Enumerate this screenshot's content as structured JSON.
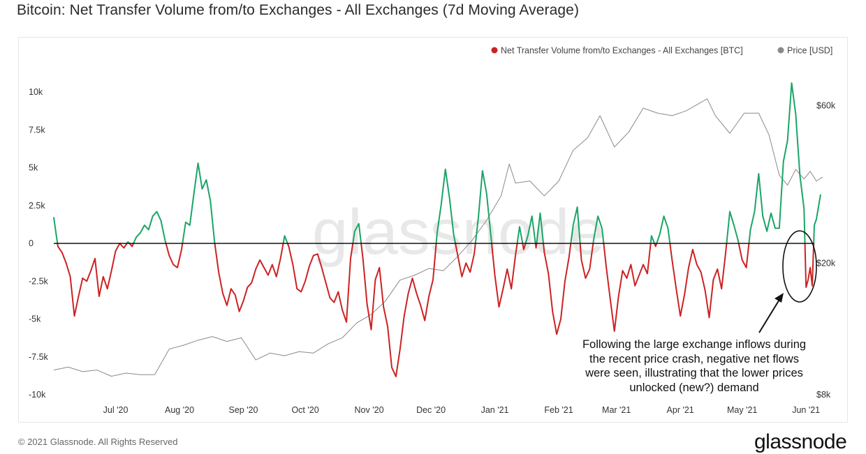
{
  "title": "Bitcoin: Net Transfer Volume from/to Exchanges - All Exchanges (7d Moving Average)",
  "footer": "© 2021 Glassnode. All Rights Reserved",
  "brand": "glassnode",
  "watermark": "glassnode",
  "annotation": "Following the large exchange inflows during the recent price crash, negative net flows were seen, illustrating that the lower prices unlocked (new?) demand",
  "colors": {
    "positive": "#1aa567",
    "negative": "#cc2222",
    "price": "#8a8a8a",
    "zero_line": "#111111"
  },
  "chart_data": {
    "type": "line",
    "legend_position": "top-right",
    "grid": false,
    "x": {
      "start": "2020-06-01",
      "end": "2021-06-05",
      "tick_labels": [
        "Jul '20",
        "Aug '20",
        "Sep '20",
        "Oct '20",
        "Nov '20",
        "Dec '20",
        "Jan '21",
        "Feb '21",
        "Mar '21",
        "Apr '21",
        "May '21",
        "Jun '21"
      ],
      "tick_dates": [
        "2020-07-01",
        "2020-08-01",
        "2020-09-01",
        "2020-10-01",
        "2020-11-01",
        "2020-12-01",
        "2021-01-01",
        "2021-02-01",
        "2021-03-01",
        "2021-04-01",
        "2021-05-01",
        "2021-06-01"
      ]
    },
    "y_left": {
      "min": -10000,
      "max": 10000,
      "ticks": [
        10000,
        7500,
        5000,
        2500,
        0,
        -2500,
        -5000,
        -7500,
        -10000
      ],
      "tick_labels": [
        "10k",
        "7.5k",
        "5k",
        "2.5k",
        "0",
        "-2.5k",
        "-5k",
        "-7.5k",
        "-10k"
      ]
    },
    "y_right": {
      "scale": "log",
      "min": 8000,
      "max": 70000,
      "ticks": [
        60000,
        20000,
        8000
      ],
      "tick_labels": [
        "$60k",
        "$20k",
        "$8k"
      ]
    },
    "series": [
      {
        "name": "Net Transfer Volume from/to Exchanges - All Exchanges [BTC]",
        "axis": "left",
        "points": [
          [
            "2020-06-01",
            1700
          ],
          [
            "2020-06-03",
            -200
          ],
          [
            "2020-06-05",
            -600
          ],
          [
            "2020-06-07",
            -1300
          ],
          [
            "2020-06-09",
            -2200
          ],
          [
            "2020-06-11",
            -4800
          ],
          [
            "2020-06-13",
            -3500
          ],
          [
            "2020-06-15",
            -2300
          ],
          [
            "2020-06-17",
            -2500
          ],
          [
            "2020-06-19",
            -1800
          ],
          [
            "2020-06-21",
            -1000
          ],
          [
            "2020-06-23",
            -3500
          ],
          [
            "2020-06-25",
            -2200
          ],
          [
            "2020-06-27",
            -3000
          ],
          [
            "2020-06-29",
            -1800
          ],
          [
            "2020-07-01",
            -500
          ],
          [
            "2020-07-03",
            0
          ],
          [
            "2020-07-05",
            -300
          ],
          [
            "2020-07-07",
            100
          ],
          [
            "2020-07-09",
            -200
          ],
          [
            "2020-07-11",
            400
          ],
          [
            "2020-07-13",
            700
          ],
          [
            "2020-07-15",
            1200
          ],
          [
            "2020-07-17",
            900
          ],
          [
            "2020-07-19",
            1800
          ],
          [
            "2020-07-21",
            2100
          ],
          [
            "2020-07-23",
            1500
          ],
          [
            "2020-07-25",
            200
          ],
          [
            "2020-07-27",
            -800
          ],
          [
            "2020-07-29",
            -1400
          ],
          [
            "2020-07-31",
            -1600
          ],
          [
            "2020-08-02",
            -400
          ],
          [
            "2020-08-04",
            1400
          ],
          [
            "2020-08-06",
            1200
          ],
          [
            "2020-08-08",
            3300
          ],
          [
            "2020-08-10",
            5300
          ],
          [
            "2020-08-12",
            3600
          ],
          [
            "2020-08-14",
            4200
          ],
          [
            "2020-08-16",
            2800
          ],
          [
            "2020-08-18",
            100
          ],
          [
            "2020-08-20",
            -1900
          ],
          [
            "2020-08-22",
            -3300
          ],
          [
            "2020-08-24",
            -4100
          ],
          [
            "2020-08-26",
            -3000
          ],
          [
            "2020-08-28",
            -3400
          ],
          [
            "2020-08-30",
            -4500
          ],
          [
            "2020-09-01",
            -3800
          ],
          [
            "2020-09-03",
            -2900
          ],
          [
            "2020-09-05",
            -2600
          ],
          [
            "2020-09-07",
            -1700
          ],
          [
            "2020-09-09",
            -1100
          ],
          [
            "2020-09-11",
            -1600
          ],
          [
            "2020-09-13",
            -2100
          ],
          [
            "2020-09-15",
            -1400
          ],
          [
            "2020-09-17",
            -2200
          ],
          [
            "2020-09-19",
            -1000
          ],
          [
            "2020-09-21",
            500
          ],
          [
            "2020-09-23",
            -200
          ],
          [
            "2020-09-25",
            -1400
          ],
          [
            "2020-09-27",
            -3000
          ],
          [
            "2020-09-29",
            -3200
          ],
          [
            "2020-10-01",
            -2500
          ],
          [
            "2020-10-03",
            -1500
          ],
          [
            "2020-10-05",
            -800
          ],
          [
            "2020-10-07",
            -700
          ],
          [
            "2020-10-09",
            -1600
          ],
          [
            "2020-10-11",
            -2600
          ],
          [
            "2020-10-13",
            -3600
          ],
          [
            "2020-10-15",
            -3900
          ],
          [
            "2020-10-17",
            -3200
          ],
          [
            "2020-10-19",
            -4400
          ],
          [
            "2020-10-21",
            -5200
          ],
          [
            "2020-10-23",
            -1000
          ],
          [
            "2020-10-25",
            800
          ],
          [
            "2020-10-27",
            1300
          ],
          [
            "2020-10-29",
            -1000
          ],
          [
            "2020-10-31",
            -4000
          ],
          [
            "2020-11-02",
            -5700
          ],
          [
            "2020-11-04",
            -2400
          ],
          [
            "2020-11-06",
            -1600
          ],
          [
            "2020-11-08",
            -4200
          ],
          [
            "2020-11-10",
            -5500
          ],
          [
            "2020-11-12",
            -8200
          ],
          [
            "2020-11-14",
            -8800
          ],
          [
            "2020-11-16",
            -7000
          ],
          [
            "2020-11-18",
            -4800
          ],
          [
            "2020-11-20",
            -3300
          ],
          [
            "2020-11-22",
            -2300
          ],
          [
            "2020-11-24",
            -3300
          ],
          [
            "2020-11-26",
            -4100
          ],
          [
            "2020-11-28",
            -5100
          ],
          [
            "2020-11-30",
            -3500
          ],
          [
            "2020-12-02",
            -2400
          ],
          [
            "2020-12-04",
            700
          ],
          [
            "2020-12-06",
            2600
          ],
          [
            "2020-12-08",
            4900
          ],
          [
            "2020-12-10",
            3000
          ],
          [
            "2020-12-12",
            600
          ],
          [
            "2020-12-14",
            -800
          ],
          [
            "2020-12-16",
            -2200
          ],
          [
            "2020-12-18",
            -1300
          ],
          [
            "2020-12-20",
            -1900
          ],
          [
            "2020-12-22",
            -700
          ],
          [
            "2020-12-24",
            1700
          ],
          [
            "2020-12-26",
            4800
          ],
          [
            "2020-12-28",
            3300
          ],
          [
            "2020-12-30",
            600
          ],
          [
            "2021-01-01",
            -2100
          ],
          [
            "2021-01-03",
            -4200
          ],
          [
            "2021-01-05",
            -3000
          ],
          [
            "2021-01-07",
            -1700
          ],
          [
            "2021-01-09",
            -3000
          ],
          [
            "2021-01-11",
            -800
          ],
          [
            "2021-01-13",
            1100
          ],
          [
            "2021-01-15",
            -400
          ],
          [
            "2021-01-17",
            500
          ],
          [
            "2021-01-19",
            1800
          ],
          [
            "2021-01-21",
            -300
          ],
          [
            "2021-01-23",
            2000
          ],
          [
            "2021-01-25",
            -600
          ],
          [
            "2021-01-27",
            -2000
          ],
          [
            "2021-01-29",
            -4500
          ],
          [
            "2021-01-31",
            -6000
          ],
          [
            "2021-02-02",
            -5000
          ],
          [
            "2021-02-04",
            -2500
          ],
          [
            "2021-02-06",
            -900
          ],
          [
            "2021-02-08",
            1200
          ],
          [
            "2021-02-10",
            2400
          ],
          [
            "2021-02-12",
            -1100
          ],
          [
            "2021-02-14",
            -2300
          ],
          [
            "2021-02-16",
            -1700
          ],
          [
            "2021-02-18",
            300
          ],
          [
            "2021-02-20",
            1800
          ],
          [
            "2021-02-22",
            1000
          ],
          [
            "2021-02-24",
            -1500
          ],
          [
            "2021-02-26",
            -3700
          ],
          [
            "2021-02-28",
            -5800
          ],
          [
            "2021-03-02",
            -3500
          ],
          [
            "2021-03-04",
            -1800
          ],
          [
            "2021-03-06",
            -2300
          ],
          [
            "2021-03-08",
            -1400
          ],
          [
            "2021-03-10",
            -2800
          ],
          [
            "2021-03-12",
            -2100
          ],
          [
            "2021-03-14",
            -1400
          ],
          [
            "2021-03-16",
            -2000
          ],
          [
            "2021-03-18",
            500
          ],
          [
            "2021-03-20",
            -200
          ],
          [
            "2021-03-22",
            600
          ],
          [
            "2021-03-24",
            1800
          ],
          [
            "2021-03-26",
            1000
          ],
          [
            "2021-03-28",
            -1100
          ],
          [
            "2021-03-30",
            -3000
          ],
          [
            "2021-04-01",
            -4800
          ],
          [
            "2021-04-03",
            -3400
          ],
          [
            "2021-04-05",
            -1600
          ],
          [
            "2021-04-07",
            -400
          ],
          [
            "2021-04-09",
            -1400
          ],
          [
            "2021-04-11",
            -1900
          ],
          [
            "2021-04-13",
            -3100
          ],
          [
            "2021-04-15",
            -4900
          ],
          [
            "2021-04-17",
            -2400
          ],
          [
            "2021-04-19",
            -1700
          ],
          [
            "2021-04-21",
            -3000
          ],
          [
            "2021-04-23",
            -600
          ],
          [
            "2021-04-25",
            2100
          ],
          [
            "2021-04-27",
            1200
          ],
          [
            "2021-04-29",
            200
          ],
          [
            "2021-05-01",
            -1100
          ],
          [
            "2021-05-03",
            -1600
          ],
          [
            "2021-05-05",
            900
          ],
          [
            "2021-05-07",
            2100
          ],
          [
            "2021-05-09",
            4600
          ],
          [
            "2021-05-11",
            1800
          ],
          [
            "2021-05-13",
            800
          ],
          [
            "2021-05-15",
            2000
          ],
          [
            "2021-05-17",
            1000
          ],
          [
            "2021-05-19",
            1000
          ],
          [
            "2021-05-21",
            5400
          ],
          [
            "2021-05-23",
            6800
          ],
          [
            "2021-05-25",
            10600
          ],
          [
            "2021-05-27",
            8500
          ],
          [
            "2021-05-29",
            4500
          ],
          [
            "2021-05-31",
            2300
          ],
          [
            "2021-06-01",
            -2900
          ],
          [
            "2021-06-02",
            -2400
          ],
          [
            "2021-06-03",
            -1600
          ],
          [
            "2021-06-04",
            -2800
          ],
          [
            "2021-06-05",
            1200
          ],
          [
            "2021-06-06",
            1600
          ],
          [
            "2021-06-08",
            3200
          ]
        ]
      },
      {
        "name": "Price [USD]",
        "axis": "right",
        "points": [
          [
            "2020-06-01",
            9500
          ],
          [
            "2020-06-08",
            9700
          ],
          [
            "2020-06-15",
            9400
          ],
          [
            "2020-06-22",
            9500
          ],
          [
            "2020-06-29",
            9100
          ],
          [
            "2020-07-06",
            9300
          ],
          [
            "2020-07-13",
            9200
          ],
          [
            "2020-07-20",
            9200
          ],
          [
            "2020-07-27",
            11000
          ],
          [
            "2020-08-03",
            11300
          ],
          [
            "2020-08-10",
            11700
          ],
          [
            "2020-08-17",
            12000
          ],
          [
            "2020-08-24",
            11600
          ],
          [
            "2020-08-31",
            11900
          ],
          [
            "2020-09-07",
            10200
          ],
          [
            "2020-09-14",
            10700
          ],
          [
            "2020-09-21",
            10500
          ],
          [
            "2020-09-28",
            10800
          ],
          [
            "2020-10-05",
            10700
          ],
          [
            "2020-10-12",
            11400
          ],
          [
            "2020-10-19",
            11900
          ],
          [
            "2020-10-26",
            13200
          ],
          [
            "2020-11-02",
            14000
          ],
          [
            "2020-11-09",
            15400
          ],
          [
            "2020-11-16",
            17800
          ],
          [
            "2020-11-23",
            18400
          ],
          [
            "2020-11-30",
            19300
          ],
          [
            "2020-12-07",
            19000
          ],
          [
            "2020-12-14",
            21000
          ],
          [
            "2020-12-21",
            23500
          ],
          [
            "2020-12-28",
            27000
          ],
          [
            "2021-01-04",
            32000
          ],
          [
            "2021-01-08",
            40000
          ],
          [
            "2021-01-11",
            35000
          ],
          [
            "2021-01-18",
            35500
          ],
          [
            "2021-01-25",
            32000
          ],
          [
            "2021-02-01",
            35500
          ],
          [
            "2021-02-08",
            44000
          ],
          [
            "2021-02-15",
            48000
          ],
          [
            "2021-02-21",
            56000
          ],
          [
            "2021-02-28",
            45000
          ],
          [
            "2021-03-07",
            50000
          ],
          [
            "2021-03-14",
            59000
          ],
          [
            "2021-03-21",
            57000
          ],
          [
            "2021-03-28",
            56000
          ],
          [
            "2021-04-04",
            58000
          ],
          [
            "2021-04-14",
            63000
          ],
          [
            "2021-04-18",
            56000
          ],
          [
            "2021-04-25",
            49500
          ],
          [
            "2021-05-02",
            57000
          ],
          [
            "2021-05-09",
            57000
          ],
          [
            "2021-05-14",
            49000
          ],
          [
            "2021-05-19",
            37000
          ],
          [
            "2021-05-23",
            34500
          ],
          [
            "2021-05-27",
            38500
          ],
          [
            "2021-05-31",
            36000
          ],
          [
            "2021-06-03",
            38000
          ],
          [
            "2021-06-06",
            35500
          ],
          [
            "2021-06-09",
            36500
          ]
        ]
      }
    ]
  }
}
